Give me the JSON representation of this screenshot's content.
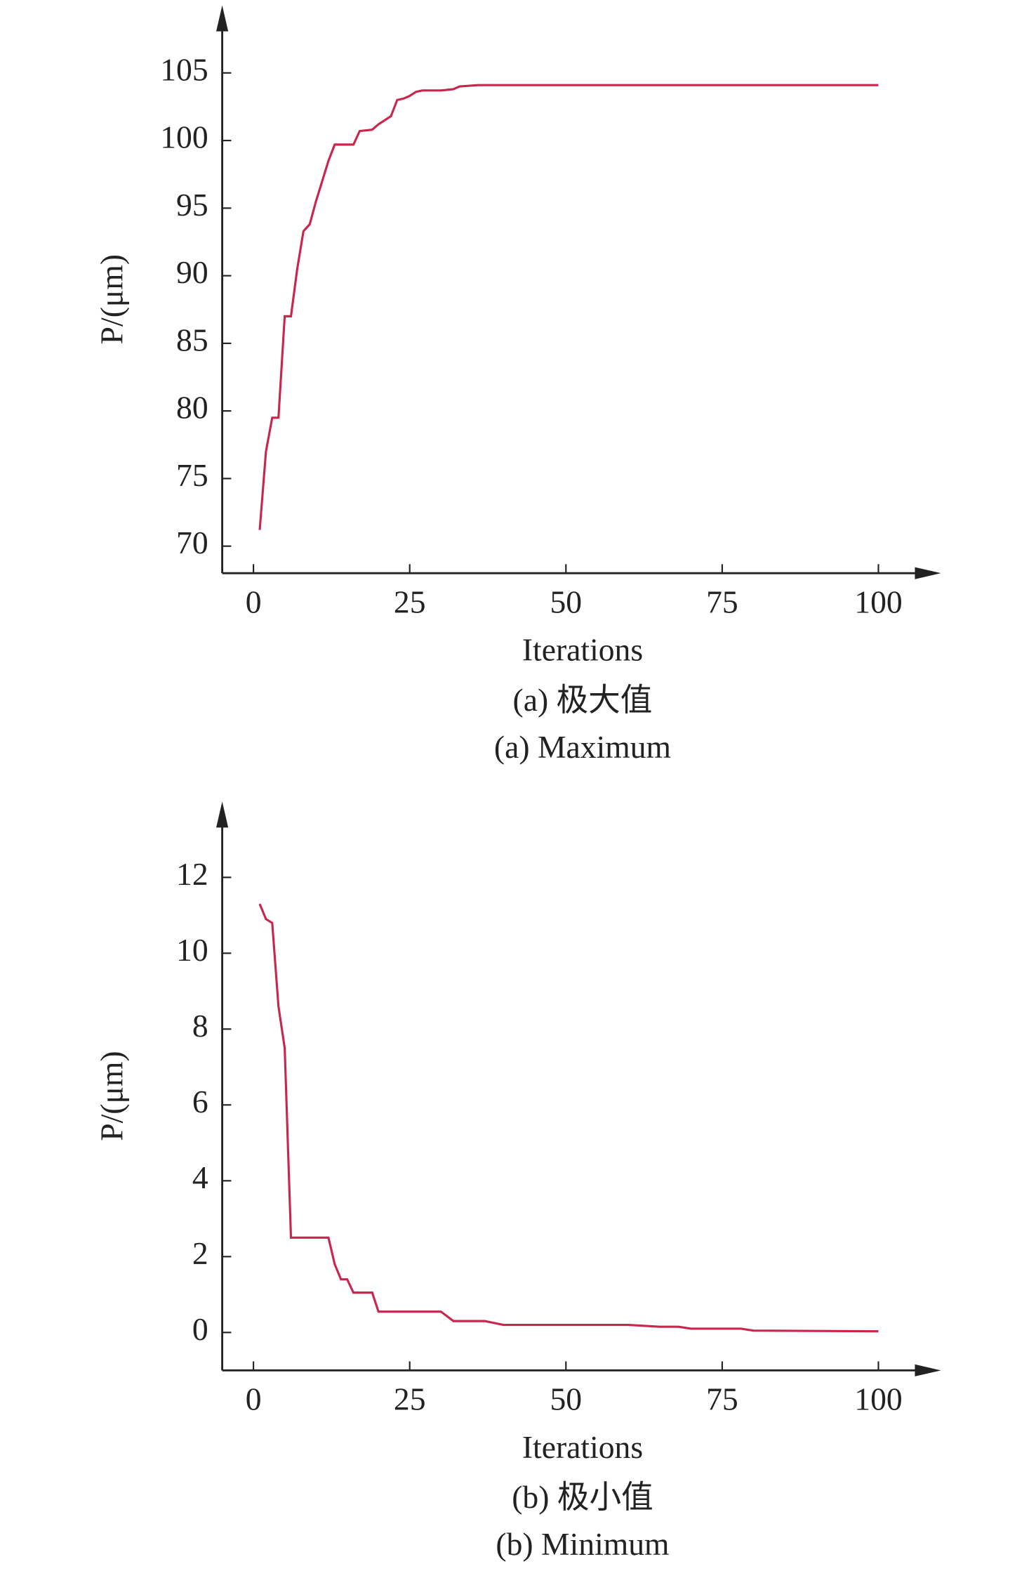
{
  "chart_data": [
    {
      "type": "line",
      "y_label": "P/(μm)",
      "x_label": "Iterations",
      "caption_cn": "(a) 极大值",
      "caption_en": "(a) Maximum",
      "xlim": [
        -5,
        110
      ],
      "ylim": [
        68,
        110
      ],
      "xticks": [
        0,
        25,
        50,
        75,
        100
      ],
      "yticks": [
        70,
        75,
        80,
        85,
        90,
        95,
        100,
        105
      ],
      "series": [
        {
          "color": "#c8264d",
          "x": [
            1,
            2,
            3,
            4,
            5,
            6,
            7,
            8,
            9,
            10,
            11,
            12,
            13,
            16,
            17,
            19,
            20,
            21,
            22,
            23,
            24,
            25,
            26,
            27,
            30,
            32,
            33,
            36,
            100
          ],
          "values": [
            71.2,
            77,
            79.5,
            79.5,
            87,
            87,
            90.5,
            93.3,
            93.8,
            95.5,
            97,
            98.5,
            99.7,
            99.7,
            100.7,
            100.8,
            101.2,
            101.5,
            101.8,
            103,
            103.1,
            103.3,
            103.6,
            103.7,
            103.7,
            103.8,
            104.0,
            104.1,
            104.1
          ]
        }
      ]
    },
    {
      "type": "line",
      "y_label": "P/(μm)",
      "x_label": "Iterations",
      "caption_cn": "(b) 极小值",
      "caption_en": "(b) Minimum",
      "xlim": [
        -5,
        110
      ],
      "ylim": [
        -1,
        14
      ],
      "xticks": [
        0,
        25,
        50,
        75,
        100
      ],
      "yticks": [
        0,
        2,
        4,
        6,
        8,
        10,
        12
      ],
      "series": [
        {
          "color": "#c8264d",
          "x": [
            1,
            2,
            3,
            4,
            5,
            6,
            12,
            13,
            14,
            15,
            16,
            19,
            20,
            30,
            32,
            37,
            40,
            60,
            65,
            68,
            70,
            78,
            80,
            100
          ],
          "values": [
            11.3,
            10.9,
            10.8,
            8.6,
            7.5,
            2.5,
            2.5,
            1.8,
            1.4,
            1.4,
            1.05,
            1.05,
            0.55,
            0.55,
            0.3,
            0.3,
            0.2,
            0.2,
            0.15,
            0.15,
            0.1,
            0.1,
            0.05,
            0.03
          ]
        }
      ]
    }
  ]
}
